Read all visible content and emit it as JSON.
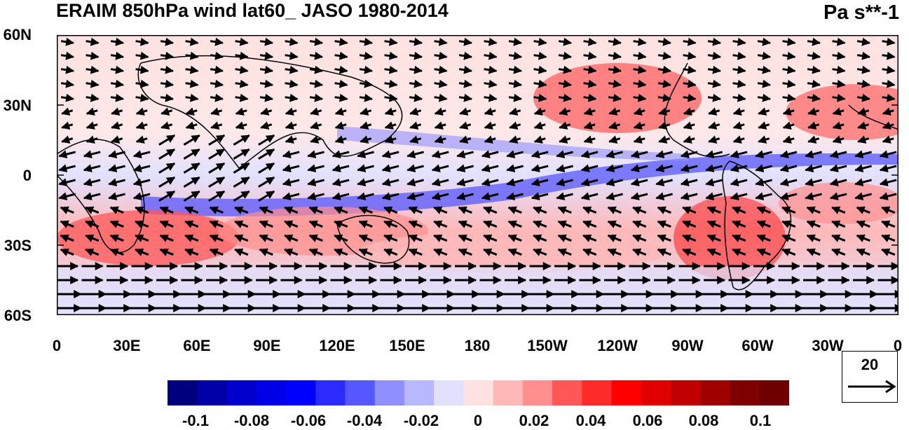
{
  "title": "ERAIM 850hPa wind lat60_ JASO 1980-2014",
  "units": "Pa s**-1",
  "map": {
    "projection": "cylindrical equidistant",
    "lon_range": [
      0,
      360
    ],
    "lat_range": [
      -60,
      60
    ],
    "field": "vertical velocity (omega) at 850 hPa, shaded",
    "vectors": "wind vectors",
    "y_ticks": [
      "60N",
      "30N",
      "0",
      "30S",
      "60S"
    ],
    "x_ticks": [
      "0",
      "30E",
      "60E",
      "90E",
      "120E",
      "150E",
      "180",
      "150W",
      "120W",
      "90W",
      "60W",
      "30W",
      "0"
    ]
  },
  "colorbar": {
    "colors": [
      "#00007f",
      "#0000a8",
      "#0000cc",
      "#0000e8",
      "#0000ff",
      "#2b2bff",
      "#5757ff",
      "#8f8fff",
      "#b8b8ff",
      "#e1e1ff",
      "#ffe1e1",
      "#ffb8b8",
      "#ff8f8f",
      "#ff5757",
      "#ff2b2b",
      "#ff0000",
      "#e00000",
      "#c00000",
      "#9f0000",
      "#7f0000",
      "#6f0000"
    ],
    "labels": [
      "-0.1",
      "-0.08",
      "-0.06",
      "-0.04",
      "-0.02",
      "0",
      "0.02",
      "0.04",
      "0.06",
      "0.08",
      "0.1"
    ]
  },
  "reference_vector": {
    "value": "20"
  }
}
